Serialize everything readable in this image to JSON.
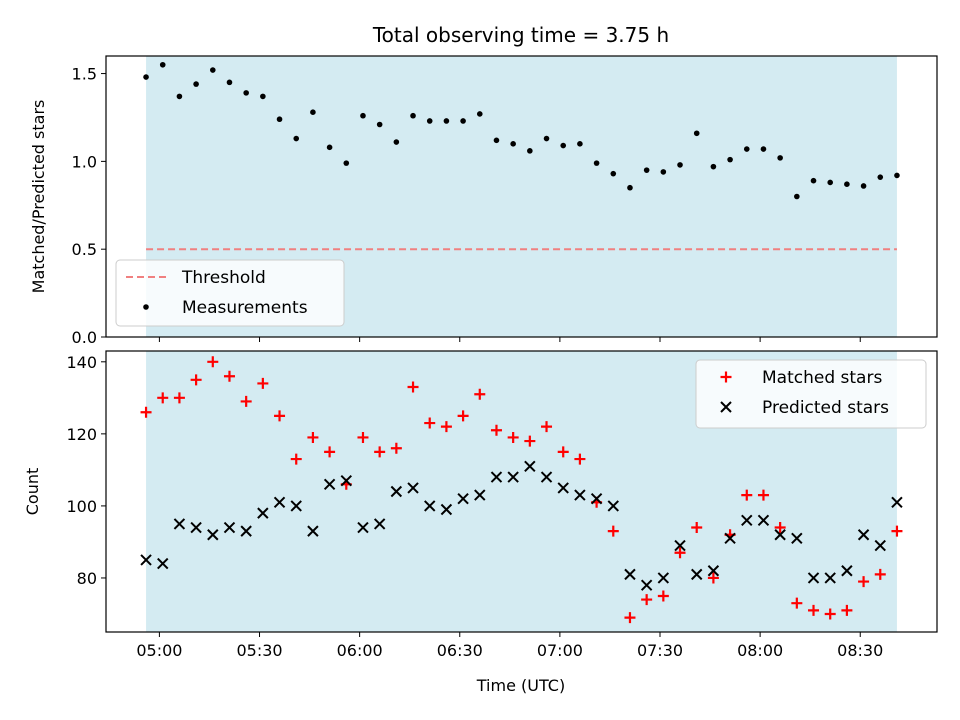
{
  "chart_data": [
    {
      "type": "scatter",
      "title": "Total observing time = 3.75 h",
      "ylabel": "Matched/Predicted stars",
      "ylim": [
        0,
        1.6
      ],
      "yticks": [
        0.0,
        0.5,
        1.0,
        1.5
      ],
      "ytick_labels": [
        "0.0",
        "0.5",
        "1.0",
        "1.5"
      ],
      "xlim": [
        "04:44",
        "08:53"
      ],
      "shaded_span": [
        "04:56",
        "08:41"
      ],
      "shade_color": "#add8e6",
      "legend": "lower-left",
      "series": [
        {
          "name": "Threshold",
          "kind": "line",
          "style": "dashed",
          "color": "#f08080",
          "x": [
            "04:56",
            "08:41"
          ],
          "values": [
            0.5,
            0.5
          ]
        },
        {
          "name": "Measurements",
          "kind": "scatter",
          "color": "#000000",
          "x": [
            "04:56",
            "05:01",
            "05:06",
            "05:11",
            "05:16",
            "05:21",
            "05:26",
            "05:31",
            "05:36",
            "05:41",
            "05:46",
            "05:51",
            "05:56",
            "06:01",
            "06:06",
            "06:11",
            "06:16",
            "06:21",
            "06:26",
            "06:31",
            "06:36",
            "06:41",
            "06:46",
            "06:51",
            "06:56",
            "07:01",
            "07:06",
            "07:11",
            "07:16",
            "07:21",
            "07:26",
            "07:31",
            "07:36",
            "07:41",
            "07:46",
            "07:51",
            "07:56",
            "08:01",
            "08:06",
            "08:11",
            "08:16",
            "08:21",
            "08:26",
            "08:31",
            "08:36",
            "08:41"
          ],
          "values": [
            1.48,
            1.55,
            1.37,
            1.44,
            1.52,
            1.45,
            1.39,
            1.37,
            1.24,
            1.13,
            1.28,
            1.08,
            0.99,
            1.26,
            1.21,
            1.11,
            1.26,
            1.23,
            1.23,
            1.23,
            1.27,
            1.12,
            1.1,
            1.06,
            1.13,
            1.09,
            1.1,
            0.99,
            0.93,
            0.85,
            0.95,
            0.94,
            0.98,
            1.16,
            0.97,
            1.01,
            1.07,
            1.07,
            1.02,
            0.8,
            0.89,
            0.88,
            0.87,
            0.86,
            0.91,
            0.92
          ]
        }
      ]
    },
    {
      "type": "scatter",
      "xlabel": "Time (UTC)",
      "ylabel": "Count",
      "ylim": [
        65,
        143
      ],
      "yticks": [
        80,
        100,
        120,
        140
      ],
      "ytick_labels": [
        "80",
        "100",
        "120",
        "140"
      ],
      "xlim": [
        "04:44",
        "08:53"
      ],
      "xticks": [
        "05:00",
        "05:30",
        "06:00",
        "06:30",
        "07:00",
        "07:30",
        "08:00",
        "08:30"
      ],
      "xtick_labels": [
        "05:00",
        "05:30",
        "06:00",
        "06:30",
        "07:00",
        "07:30",
        "08:00",
        "08:30"
      ],
      "shaded_span": [
        "04:56",
        "08:41"
      ],
      "shade_color": "#add8e6",
      "legend": "top-right",
      "series": [
        {
          "name": "Matched stars",
          "marker": "plus",
          "color": "#ff0000",
          "x": [
            "04:56",
            "05:01",
            "05:06",
            "05:11",
            "05:16",
            "05:21",
            "05:26",
            "05:31",
            "05:36",
            "05:41",
            "05:46",
            "05:51",
            "05:56",
            "06:01",
            "06:06",
            "06:11",
            "06:16",
            "06:21",
            "06:26",
            "06:31",
            "06:36",
            "06:41",
            "06:46",
            "06:51",
            "06:56",
            "07:01",
            "07:06",
            "07:11",
            "07:16",
            "07:21",
            "07:26",
            "07:31",
            "07:36",
            "07:41",
            "07:46",
            "07:51",
            "07:56",
            "08:01",
            "08:06",
            "08:11",
            "08:16",
            "08:21",
            "08:26",
            "08:31",
            "08:36",
            "08:41"
          ],
          "values": [
            126,
            130,
            130,
            135,
            140,
            136,
            129,
            134,
            125,
            113,
            119,
            115,
            106,
            119,
            115,
            116,
            133,
            123,
            122,
            125,
            131,
            121,
            119,
            118,
            122,
            115,
            113,
            101,
            93,
            69,
            74,
            75,
            87,
            94,
            80,
            92,
            103,
            103,
            94,
            73,
            71,
            70,
            71,
            79,
            81,
            93
          ]
        },
        {
          "name": "Predicted stars",
          "marker": "x",
          "color": "#000000",
          "x": [
            "04:56",
            "05:01",
            "05:06",
            "05:11",
            "05:16",
            "05:21",
            "05:26",
            "05:31",
            "05:36",
            "05:41",
            "05:46",
            "05:51",
            "05:56",
            "06:01",
            "06:06",
            "06:11",
            "06:16",
            "06:21",
            "06:26",
            "06:31",
            "06:36",
            "06:41",
            "06:46",
            "06:51",
            "06:56",
            "07:01",
            "07:06",
            "07:11",
            "07:16",
            "07:21",
            "07:26",
            "07:31",
            "07:36",
            "07:41",
            "07:46",
            "07:51",
            "07:56",
            "08:01",
            "08:06",
            "08:11",
            "08:16",
            "08:21",
            "08:26",
            "08:31",
            "08:36",
            "08:41"
          ],
          "values": [
            85,
            84,
            95,
            94,
            92,
            94,
            93,
            98,
            101,
            100,
            93,
            106,
            107,
            94,
            95,
            104,
            105,
            100,
            99,
            102,
            103,
            108,
            108,
            111,
            108,
            105,
            103,
            102,
            100,
            81,
            78,
            80,
            89,
            81,
            82,
            91,
            96,
            96,
            92,
            91,
            80,
            80,
            82,
            92,
            89,
            101
          ]
        }
      ]
    }
  ]
}
